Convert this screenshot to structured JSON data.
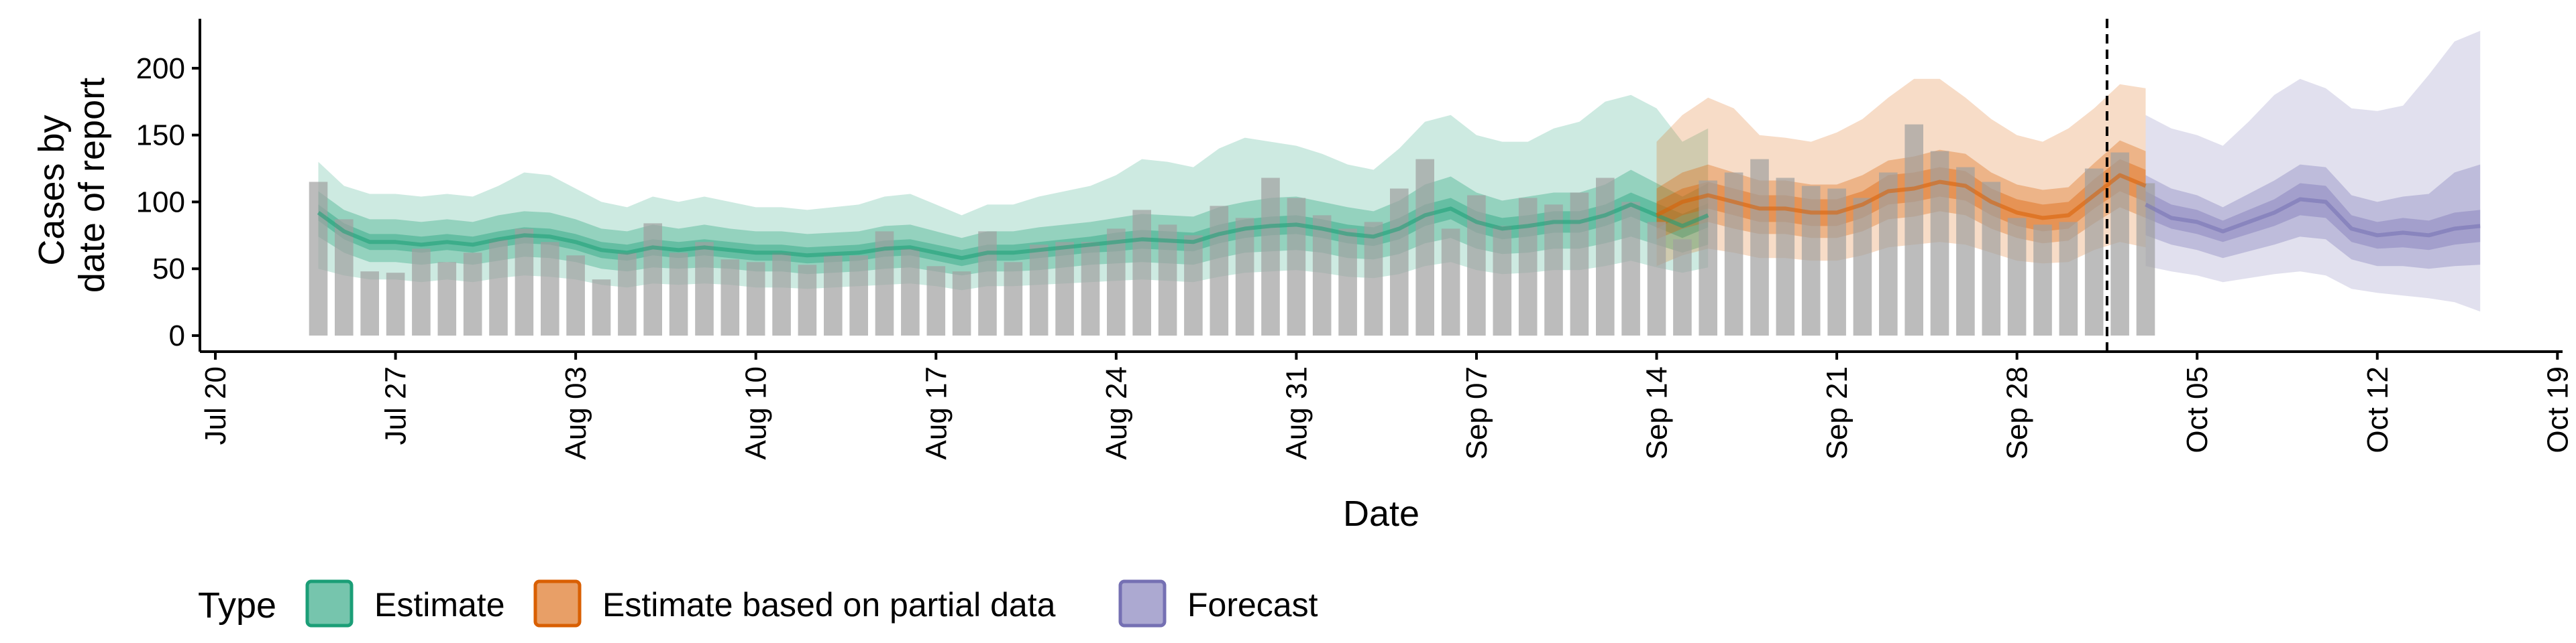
{
  "chart_data": {
    "type": "area",
    "xlabel": "Date",
    "ylabel": [
      "Cases by",
      "date of report"
    ],
    "x_ticks": [
      "Jul 20",
      "Jul 27",
      "Aug 03",
      "Aug 10",
      "Aug 17",
      "Aug 24",
      "Aug 31",
      "Sep 07",
      "Sep 14",
      "Sep 21",
      "Sep 28",
      "Oct 05",
      "Oct 12",
      "Oct 19"
    ],
    "y_ticks": [
      0,
      50,
      100,
      150,
      200
    ],
    "ylim": [
      -12,
      237
    ],
    "x_start": "2020-07-20",
    "x_range_days": [
      -0.6,
      91.2
    ],
    "forecast_date_line": "2020-10-01",
    "grid": false,
    "legend": {
      "title": "Type",
      "position": "bottom",
      "entries": [
        {
          "label": "Estimate",
          "color": "#1B9E77"
        },
        {
          "label": "Estimate based on partial data",
          "color": "#D95F02"
        },
        {
          "label": "Forecast",
          "color": "#7570B3"
        }
      ]
    },
    "reported_cases": {
      "start": "2020-07-24",
      "color": "#A0A0A0",
      "values": [
        115,
        87,
        48,
        47,
        65,
        55,
        62,
        72,
        80,
        70,
        60,
        42,
        62,
        84,
        62,
        70,
        57,
        55,
        62,
        53,
        60,
        60,
        78,
        65,
        52,
        48,
        78,
        55,
        68,
        70,
        70,
        80,
        94,
        83,
        75,
        97,
        88,
        118,
        103,
        90,
        80,
        85,
        110,
        132,
        80,
        105,
        82,
        103,
        98,
        107,
        118,
        100,
        85,
        72,
        116,
        122,
        132,
        118,
        112,
        110,
        103,
        122,
        158,
        138,
        126,
        115,
        88,
        83,
        85,
        125,
        137,
        114
      ]
    },
    "series": [
      {
        "name": "Estimate",
        "start": "2020-07-24",
        "color": "#1B9E77",
        "median": [
          92,
          78,
          70,
          70,
          68,
          70,
          68,
          72,
          75,
          74,
          70,
          64,
          62,
          66,
          64,
          66,
          64,
          62,
          62,
          60,
          61,
          62,
          65,
          66,
          62,
          58,
          62,
          62,
          64,
          66,
          68,
          70,
          72,
          71,
          70,
          76,
          80,
          82,
          83,
          80,
          76,
          74,
          80,
          90,
          95,
          85,
          80,
          82,
          85,
          85,
          90,
          98,
          90,
          82,
          90
        ],
        "inner": [
          [
            86,
            98
          ],
          [
            72,
            84
          ],
          [
            64,
            76
          ],
          [
            64,
            76
          ],
          [
            62,
            74
          ],
          [
            64,
            76
          ],
          [
            62,
            74
          ],
          [
            66,
            78
          ],
          [
            69,
            81
          ],
          [
            68,
            80
          ],
          [
            64,
            76
          ],
          [
            58,
            70
          ],
          [
            56,
            68
          ],
          [
            60,
            72
          ],
          [
            58,
            70
          ],
          [
            60,
            72
          ],
          [
            58,
            70
          ],
          [
            56,
            68
          ],
          [
            56,
            68
          ],
          [
            54,
            66
          ],
          [
            55,
            67
          ],
          [
            56,
            68
          ],
          [
            59,
            71
          ],
          [
            60,
            72
          ],
          [
            56,
            68
          ],
          [
            52,
            64
          ],
          [
            56,
            68
          ],
          [
            56,
            68
          ],
          [
            58,
            70
          ],
          [
            60,
            72
          ],
          [
            62,
            74
          ],
          [
            63,
            77
          ],
          [
            65,
            79
          ],
          [
            64,
            78
          ],
          [
            63,
            77
          ],
          [
            69,
            83
          ],
          [
            73,
            87
          ],
          [
            75,
            89
          ],
          [
            76,
            90
          ],
          [
            73,
            87
          ],
          [
            69,
            83
          ],
          [
            67,
            81
          ],
          [
            72,
            88
          ],
          [
            82,
            98
          ],
          [
            87,
            103
          ],
          [
            77,
            93
          ],
          [
            72,
            88
          ],
          [
            74,
            90
          ],
          [
            77,
            93
          ],
          [
            77,
            93
          ],
          [
            82,
            98
          ],
          [
            89,
            107
          ],
          [
            81,
            99
          ],
          [
            73,
            91
          ],
          [
            81,
            99
          ]
        ],
        "mid": [
          [
            74,
            108
          ],
          [
            62,
            94
          ],
          [
            55,
            87
          ],
          [
            55,
            87
          ],
          [
            53,
            85
          ],
          [
            55,
            87
          ],
          [
            53,
            85
          ],
          [
            56,
            90
          ],
          [
            59,
            93
          ],
          [
            58,
            92
          ],
          [
            55,
            87
          ],
          [
            50,
            80
          ],
          [
            48,
            78
          ],
          [
            51,
            83
          ],
          [
            50,
            80
          ],
          [
            51,
            83
          ],
          [
            50,
            80
          ],
          [
            48,
            78
          ],
          [
            48,
            78
          ],
          [
            46,
            76
          ],
          [
            47,
            77
          ],
          [
            48,
            78
          ],
          [
            50,
            82
          ],
          [
            51,
            83
          ],
          [
            48,
            78
          ],
          [
            45,
            73
          ],
          [
            48,
            78
          ],
          [
            48,
            78
          ],
          [
            49,
            81
          ],
          [
            51,
            83
          ],
          [
            53,
            85
          ],
          [
            54,
            88
          ],
          [
            55,
            91
          ],
          [
            54,
            90
          ],
          [
            53,
            89
          ],
          [
            58,
            96
          ],
          [
            62,
            100
          ],
          [
            63,
            103
          ],
          [
            64,
            104
          ],
          [
            62,
            100
          ],
          [
            58,
            96
          ],
          [
            57,
            93
          ],
          [
            61,
            101
          ],
          [
            69,
            113
          ],
          [
            73,
            119
          ],
          [
            65,
            107
          ],
          [
            61,
            101
          ],
          [
            62,
            104
          ],
          [
            65,
            107
          ],
          [
            65,
            107
          ],
          [
            69,
            113
          ],
          [
            74,
            124
          ],
          [
            68,
            114
          ],
          [
            62,
            104
          ],
          [
            68,
            114
          ]
        ],
        "outer": [
          [
            50,
            130
          ],
          [
            45,
            112
          ],
          [
            42,
            106
          ],
          [
            42,
            106
          ],
          [
            40,
            104
          ],
          [
            42,
            106
          ],
          [
            40,
            104
          ],
          [
            43,
            112
          ],
          [
            45,
            122
          ],
          [
            44,
            120
          ],
          [
            42,
            110
          ],
          [
            38,
            100
          ],
          [
            36,
            96
          ],
          [
            39,
            104
          ],
          [
            38,
            100
          ],
          [
            39,
            104
          ],
          [
            38,
            100
          ],
          [
            36,
            96
          ],
          [
            36,
            96
          ],
          [
            35,
            94
          ],
          [
            36,
            96
          ],
          [
            37,
            98
          ],
          [
            38,
            104
          ],
          [
            39,
            106
          ],
          [
            37,
            98
          ],
          [
            34,
            90
          ],
          [
            37,
            98
          ],
          [
            37,
            98
          ],
          [
            38,
            104
          ],
          [
            39,
            108
          ],
          [
            40,
            112
          ],
          [
            41,
            120
          ],
          [
            42,
            132
          ],
          [
            41,
            130
          ],
          [
            40,
            126
          ],
          [
            44,
            140
          ],
          [
            47,
            148
          ],
          [
            48,
            145
          ],
          [
            49,
            142
          ],
          [
            47,
            136
          ],
          [
            44,
            128
          ],
          [
            43,
            124
          ],
          [
            46,
            140
          ],
          [
            52,
            160
          ],
          [
            55,
            165
          ],
          [
            49,
            150
          ],
          [
            46,
            145
          ],
          [
            47,
            145
          ],
          [
            49,
            155
          ],
          [
            49,
            160
          ],
          [
            52,
            175
          ],
          [
            56,
            180
          ],
          [
            51,
            170
          ],
          [
            47,
            145
          ],
          [
            51,
            155
          ]
        ]
      },
      {
        "name": "Estimate based on partial data",
        "start": "2020-09-14",
        "color": "#D95F02",
        "median": [
          90,
          100,
          105,
          100,
          95,
          95,
          92,
          92,
          98,
          108,
          110,
          115,
          112,
          100,
          92,
          88,
          90,
          105,
          120,
          112
        ],
        "inner": [
          [
            80,
            100
          ],
          [
            90,
            110
          ],
          [
            95,
            115
          ],
          [
            90,
            110
          ],
          [
            85,
            105
          ],
          [
            85,
            105
          ],
          [
            82,
            102
          ],
          [
            82,
            102
          ],
          [
            88,
            108
          ],
          [
            98,
            120
          ],
          [
            100,
            122
          ],
          [
            104,
            126
          ],
          [
            101,
            123
          ],
          [
            90,
            110
          ],
          [
            82,
            102
          ],
          [
            78,
            98
          ],
          [
            80,
            100
          ],
          [
            95,
            117
          ],
          [
            108,
            132
          ],
          [
            100,
            124
          ]
        ],
        "mid": [
          [
            72,
            110
          ],
          [
            80,
            122
          ],
          [
            85,
            128
          ],
          [
            80,
            122
          ],
          [
            76,
            116
          ],
          [
            76,
            116
          ],
          [
            73,
            113
          ],
          [
            73,
            113
          ],
          [
            78,
            120
          ],
          [
            87,
            131
          ],
          [
            89,
            134
          ],
          [
            93,
            139
          ],
          [
            90,
            136
          ],
          [
            80,
            122
          ],
          [
            73,
            113
          ],
          [
            69,
            109
          ],
          [
            71,
            111
          ],
          [
            84,
            129
          ],
          [
            96,
            146
          ],
          [
            88,
            138
          ]
        ],
        "outer": [
          [
            52,
            145
          ],
          [
            60,
            165
          ],
          [
            65,
            178
          ],
          [
            62,
            170
          ],
          [
            58,
            150
          ],
          [
            58,
            148
          ],
          [
            56,
            145
          ],
          [
            56,
            152
          ],
          [
            60,
            162
          ],
          [
            66,
            178
          ],
          [
            68,
            192
          ],
          [
            70,
            192
          ],
          [
            68,
            178
          ],
          [
            62,
            162
          ],
          [
            56,
            150
          ],
          [
            54,
            145
          ],
          [
            55,
            155
          ],
          [
            64,
            170
          ],
          [
            70,
            188
          ],
          [
            66,
            185
          ]
        ]
      },
      {
        "name": "Forecast",
        "start": "2020-10-03",
        "color": "#7570B3",
        "median": [
          98,
          88,
          85,
          78,
          85,
          92,
          102,
          100,
          80,
          75,
          77,
          75,
          80,
          82
        ],
        "inner": [
          [
            88,
            108
          ],
          [
            80,
            98
          ],
          [
            76,
            94
          ],
          [
            70,
            86
          ],
          [
            76,
            94
          ],
          [
            82,
            102
          ],
          [
            90,
            114
          ],
          [
            88,
            112
          ],
          [
            70,
            90
          ],
          [
            65,
            85
          ],
          [
            66,
            88
          ],
          [
            64,
            86
          ],
          [
            68,
            92
          ],
          [
            70,
            94
          ]
        ],
        "mid": [
          [
            75,
            120
          ],
          [
            68,
            110
          ],
          [
            64,
            105
          ],
          [
            58,
            96
          ],
          [
            63,
            106
          ],
          [
            68,
            116
          ],
          [
            74,
            128
          ],
          [
            72,
            126
          ],
          [
            57,
            105
          ],
          [
            52,
            100
          ],
          [
            52,
            104
          ],
          [
            50,
            106
          ],
          [
            52,
            122
          ],
          [
            53,
            128
          ]
        ],
        "outer": [
          [
            52,
            165
          ],
          [
            48,
            155
          ],
          [
            45,
            150
          ],
          [
            40,
            142
          ],
          [
            43,
            160
          ],
          [
            46,
            180
          ],
          [
            48,
            192
          ],
          [
            45,
            185
          ],
          [
            35,
            170
          ],
          [
            32,
            168
          ],
          [
            30,
            172
          ],
          [
            28,
            195
          ],
          [
            25,
            220
          ],
          [
            18,
            228
          ]
        ]
      }
    ]
  }
}
